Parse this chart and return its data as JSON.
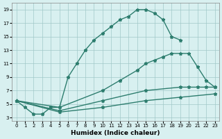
{
  "color": "#2d7d6e",
  "bg_color": "#d8f0f0",
  "grid_color": "#a0c8c8",
  "xlabel": "Humidex (Indice chaleur)",
  "xlim": [
    -0.5,
    23.5
  ],
  "ylim": [
    2.5,
    20.0
  ],
  "xticks": [
    0,
    1,
    2,
    3,
    4,
    5,
    6,
    7,
    8,
    9,
    10,
    11,
    12,
    13,
    14,
    15,
    16,
    17,
    18,
    19,
    20,
    21,
    22,
    23
  ],
  "yticks": [
    3,
    5,
    7,
    9,
    11,
    13,
    15,
    17,
    19
  ],
  "curve1_x": [
    0,
    1,
    2,
    3,
    4,
    5,
    6,
    7,
    8,
    9,
    10,
    11,
    12,
    13,
    14,
    15,
    16,
    17,
    18,
    19
  ],
  "curve1_y": [
    5.5,
    4.5,
    3.5,
    3.5,
    4.5,
    4.5,
    9.0,
    11.0,
    13.0,
    14.5,
    15.5,
    16.5,
    17.5,
    18.0,
    19.0,
    19.0,
    18.5,
    17.5,
    15.0,
    14.5
  ],
  "curve2_x": [
    0,
    5,
    10,
    12,
    14,
    15,
    16,
    17,
    18,
    19,
    20,
    21,
    22,
    23
  ],
  "curve2_y": [
    5.5,
    4.5,
    7.0,
    8.5,
    10.0,
    11.0,
    11.5,
    12.0,
    12.5,
    12.5,
    12.5,
    10.5,
    8.5,
    7.5
  ],
  "curve3_x": [
    0,
    5,
    10,
    15,
    19,
    20,
    21,
    22,
    23
  ],
  "curve3_y": [
    5.5,
    4.0,
    5.5,
    7.0,
    7.5,
    7.5,
    7.5,
    7.5,
    7.5
  ],
  "curve4_x": [
    0,
    5,
    10,
    15,
    19,
    23
  ],
  "curve4_y": [
    5.5,
    3.8,
    4.5,
    5.5,
    6.0,
    6.5
  ]
}
